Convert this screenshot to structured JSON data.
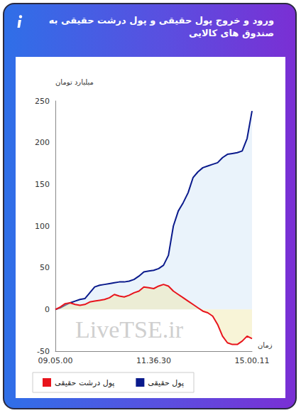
{
  "chart_data": {
    "type": "line",
    "title": "ورود و خروج پول حقیقی و پول درشت حقیقی به صندوق های کالایی",
    "ylabel": "میلیارد تومان",
    "xlabel": "زمان",
    "annotation": "LiveTSE.ir",
    "categories": [
      "09.05.00",
      null,
      null,
      null,
      null,
      null,
      null,
      null,
      null,
      null,
      null,
      null,
      null,
      null,
      null,
      null,
      null,
      null,
      null,
      null,
      "11.36.30",
      null,
      null,
      null,
      null,
      null,
      null,
      null,
      null,
      null,
      null,
      null,
      null,
      null,
      null,
      null,
      null,
      null,
      null,
      null,
      "15.00.11"
    ],
    "series": [
      {
        "name": "پول حقیقی",
        "color": "#0a1a8c",
        "values": [
          0,
          2,
          5,
          8,
          10,
          12,
          13,
          20,
          27,
          29,
          30,
          31,
          32,
          33,
          33,
          34,
          36,
          40,
          45,
          46,
          47,
          49,
          53,
          65,
          100,
          118,
          128,
          140,
          158,
          165,
          170,
          172,
          174,
          176,
          182,
          186,
          187,
          188,
          190,
          205,
          238
        ]
      },
      {
        "name": "پول درشت حقیقی",
        "color": "#e8141c",
        "values": [
          0,
          3,
          7,
          8,
          6,
          5,
          6,
          9,
          10,
          11,
          12,
          14,
          18,
          16,
          15,
          17,
          20,
          22,
          27,
          26,
          25,
          28,
          30,
          28,
          22,
          18,
          14,
          10,
          6,
          2,
          -2,
          -4,
          -8,
          -18,
          -32,
          -40,
          -42,
          -42,
          -38,
          -32,
          -35
        ]
      }
    ],
    "ylim": [
      -50,
      250
    ],
    "yticks": [
      -50,
      0,
      50,
      100,
      150,
      200,
      250
    ],
    "grid": false,
    "legend": "bottom"
  }
}
